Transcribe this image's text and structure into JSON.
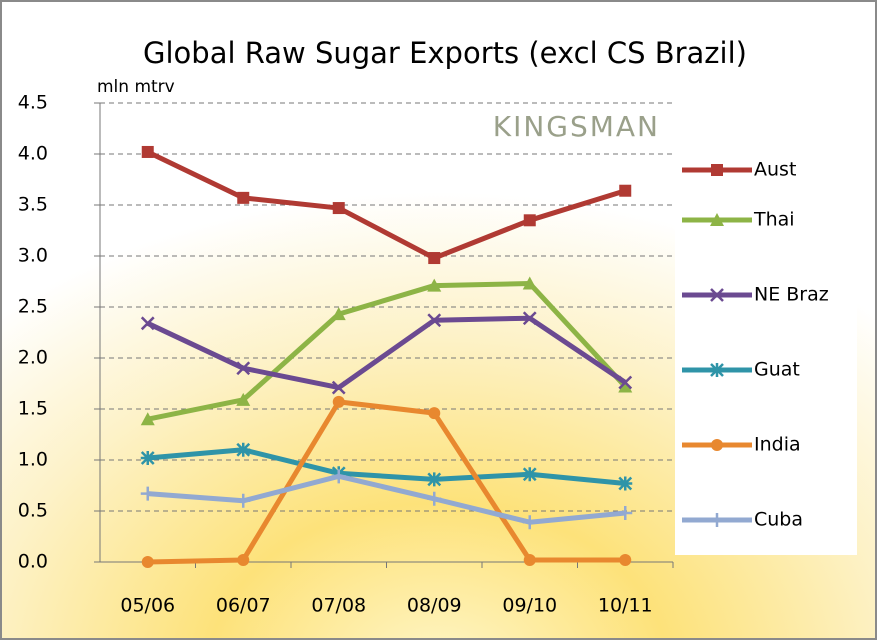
{
  "chart_data": {
    "type": "line",
    "title": "Global Raw Sugar Exports (excl CS Brazil)",
    "y_axis_label": "mln mtrv",
    "watermark": "KINGSMAN",
    "categories": [
      "05/06",
      "06/07",
      "07/08",
      "08/09",
      "09/10",
      "10/11"
    ],
    "series": [
      {
        "name": "Aust",
        "color": "#b03a33",
        "marker": "square",
        "values": [
          4.02,
          3.57,
          3.47,
          2.98,
          3.35,
          3.64
        ]
      },
      {
        "name": "Thai",
        "color": "#8db446",
        "marker": "triangle",
        "values": [
          1.4,
          1.59,
          2.43,
          2.71,
          2.73,
          1.72
        ]
      },
      {
        "name": "NE Braz",
        "color": "#6b4a91",
        "marker": "x",
        "values": [
          2.34,
          1.9,
          1.71,
          2.37,
          2.39,
          1.76
        ]
      },
      {
        "name": "Guat",
        "color": "#2f94a8",
        "marker": "asterisk",
        "values": [
          1.02,
          1.1,
          0.87,
          0.81,
          0.86,
          0.77
        ]
      },
      {
        "name": "India",
        "color": "#e8882f",
        "marker": "circle",
        "values": [
          0.0,
          0.02,
          1.57,
          1.46,
          0.02,
          0.02
        ]
      },
      {
        "name": "Cuba",
        "color": "#92a9d1",
        "marker": "plus",
        "values": [
          0.67,
          0.6,
          0.84,
          0.62,
          0.39,
          0.48
        ]
      }
    ],
    "ylim": [
      0,
      4.5
    ],
    "yticks": [
      {
        "value": 0,
        "label": "0.0"
      },
      {
        "value": 0.5,
        "label": "0.5"
      },
      {
        "value": 1,
        "label": "1.0"
      },
      {
        "value": 1.5,
        "label": "1.5"
      },
      {
        "value": 2,
        "label": "2.0"
      },
      {
        "value": 2.5,
        "label": "2.5"
      },
      {
        "value": 3,
        "label": "3.0"
      },
      {
        "value": 3.5,
        "label": "3.5"
      },
      {
        "value": 4,
        "label": "4.0"
      },
      {
        "value": 4.5,
        "label": "4.5"
      }
    ],
    "grid": true,
    "legend": "right"
  }
}
